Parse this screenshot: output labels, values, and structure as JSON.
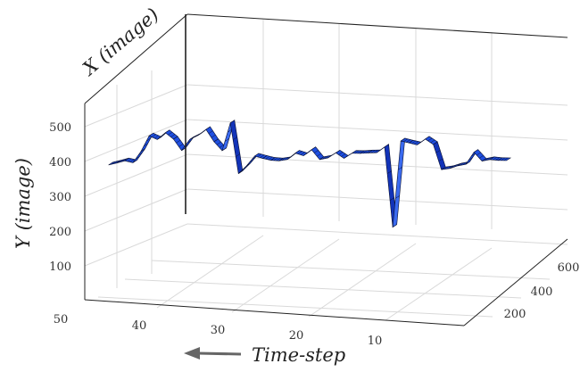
{
  "chart_data": {
    "type": "surface",
    "xlabel": "Time-step",
    "ylabel": "Y (image)",
    "zlabel": "X (image)",
    "x_ticks": [
      "50",
      "40",
      "30",
      "20",
      "10"
    ],
    "y_ticks": [
      "500",
      "400",
      "300",
      "200",
      "100"
    ],
    "z_ticks": [
      "200",
      "400",
      "600"
    ],
    "xlim": [
      0,
      50
    ],
    "ylim": [
      50,
      550
    ],
    "zlim": [
      100,
      700
    ],
    "grid": true,
    "surface_color": "#1f4fe0",
    "edge_color": "#0a1030",
    "series": [
      {
        "x": [
          50,
          49,
          48,
          47,
          46,
          45,
          44,
          43,
          42,
          41,
          40,
          39,
          38,
          37,
          36,
          35,
          34,
          33,
          32,
          31,
          30,
          29,
          28,
          27,
          26,
          25,
          24,
          23,
          22,
          21,
          20,
          19,
          18,
          17,
          16,
          15,
          14,
          13,
          12,
          11,
          10,
          9,
          8,
          7,
          6,
          5,
          4,
          3,
          2,
          1
        ],
        "y": [
          392,
          398,
          405,
          400,
          433,
          478,
          468,
          488,
          470,
          438,
          470,
          482,
          500,
          465,
          440,
          520,
          375,
          398,
          426,
          420,
          415,
          414,
          418,
          437,
          430,
          448,
          420,
          425,
          440,
          425,
          440,
          440,
          442,
          443,
          460,
          230,
          478,
          473,
          468,
          485,
          470,
          398,
          402,
          410,
          415,
          450,
          425,
          430,
          428,
          428
        ],
        "z_start": [
          238,
          241,
          244,
          247,
          250,
          253,
          256,
          259,
          262,
          265,
          268,
          271,
          274,
          277,
          280,
          283,
          286,
          289,
          292,
          295,
          298,
          301,
          304,
          307,
          310,
          313,
          316,
          319,
          322,
          325,
          328,
          331,
          334,
          337,
          340,
          343,
          346,
          349,
          352,
          355,
          358,
          361,
          364,
          367,
          370,
          373,
          376,
          379,
          382,
          385
        ],
        "z_end": [
          262,
          265,
          268,
          271,
          274,
          277,
          280,
          283,
          286,
          289,
          292,
          295,
          298,
          301,
          304,
          307,
          310,
          313,
          316,
          319,
          322,
          325,
          328,
          331,
          334,
          337,
          340,
          343,
          346,
          349,
          352,
          355,
          358,
          361,
          364,
          367,
          370,
          373,
          376,
          379,
          382,
          385,
          388,
          391,
          394,
          397,
          400,
          403,
          406,
          409
        ]
      }
    ]
  }
}
